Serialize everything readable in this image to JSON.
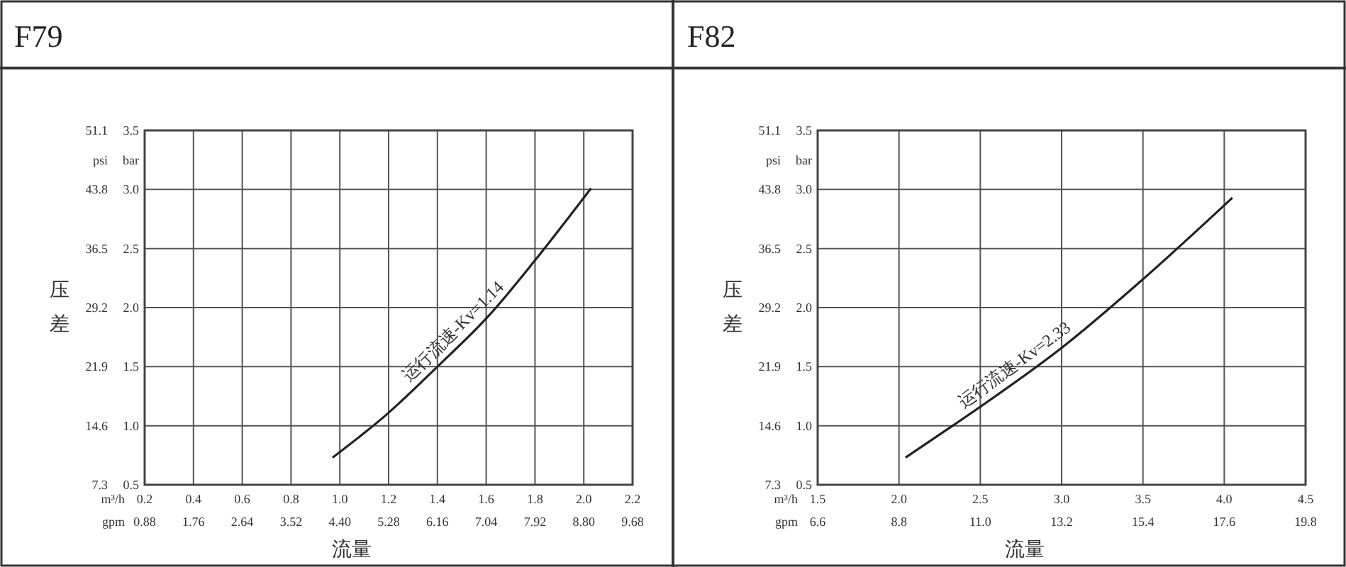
{
  "chart_data": [
    {
      "type": "line",
      "title": "F79",
      "xlabel": "流量",
      "ylabel": "压差",
      "x2label": "gpm",
      "y2label": "bar",
      "annotations": [
        "运行流速-Kv=1.14",
        "psi",
        "m³/h"
      ],
      "series": [
        {
          "color": "#222222",
          "axis": "y2",
          "x": [
            0.97,
            1.2,
            1.4,
            1.61,
            1.8,
            2.03
          ],
          "values": [
            0.73,
            1.11,
            1.5,
            1.93,
            2.4,
            3.01
          ]
        }
      ],
      "xlim": [
        0.2,
        2.2
      ],
      "xticks": [
        0.2,
        0.4,
        0.6,
        0.8,
        {
          "value": 1,
          "label": "1.0"
        },
        1.2,
        1.4,
        1.6,
        1.8,
        {
          "value": 2,
          "label": "2.0"
        },
        2.2
      ],
      "x2lim": [
        0.88,
        9.68
      ],
      "x2ticks": [
        0.88,
        1.76,
        2.64,
        3.52,
        {
          "value": 4.4,
          "label": "4.40"
        },
        5.28,
        6.16,
        7.04,
        7.92,
        {
          "value": 8.8,
          "label": "8.80"
        },
        9.68
      ],
      "y2lim": [
        0.5,
        3.5
      ],
      "y2ticks": [
        0.5,
        {
          "value": 1,
          "label": "1.0"
        },
        1.5,
        {
          "value": 2,
          "label": "2.0"
        },
        2.5,
        {
          "value": 3,
          "label": "3.0"
        },
        3.5
      ],
      "ylim": [
        7.3,
        51.1
      ],
      "yticks": [
        7.3,
        14.6,
        21.9,
        29.2,
        36.5,
        43.8,
        51.1
      ],
      "grid": true,
      "line_style": "solid"
    },
    {
      "type": "line",
      "title": "F82",
      "xlabel": "流量",
      "ylabel": "压差",
      "x2label": "gpm",
      "y2label": "bar",
      "annotations": [
        "运行流速-Kv=2.33",
        "psi",
        "m³/h"
      ],
      "series": [
        {
          "color": "#222222",
          "axis": "y2",
          "x": [
            2.04,
            2.33,
            2.51,
            3.01,
            3.5,
            4.05
          ],
          "values": [
            0.73,
            1.0,
            1.17,
            1.67,
            2.24,
            2.93
          ]
        }
      ],
      "xlim": [
        1.5,
        4.5
      ],
      "xticks": [
        1.5,
        {
          "value": 2,
          "label": "2.0"
        },
        2.5,
        {
          "value": 3,
          "label": "3.0"
        },
        3.5,
        {
          "value": 4,
          "label": "4.0"
        },
        4.5
      ],
      "x2lim": [
        6.6,
        19.8
      ],
      "x2ticks": [
        6.6,
        8.8,
        {
          "value": 11,
          "label": "11.0"
        },
        13.2,
        15.4,
        17.6,
        19.8
      ],
      "y2lim": [
        0.5,
        3.5
      ],
      "y2ticks": [
        0.5,
        {
          "value": 1,
          "label": "1.0"
        },
        1.5,
        {
          "value": 2,
          "label": "2.0"
        },
        2.5,
        {
          "value": 3,
          "label": "3.0"
        },
        3.5
      ],
      "ylim": [
        7.3,
        51.1
      ],
      "yticks": [
        7.3,
        14.6,
        21.9,
        29.2,
        36.5,
        43.8,
        51.1
      ],
      "grid": true,
      "line_style": "solid"
    }
  ]
}
